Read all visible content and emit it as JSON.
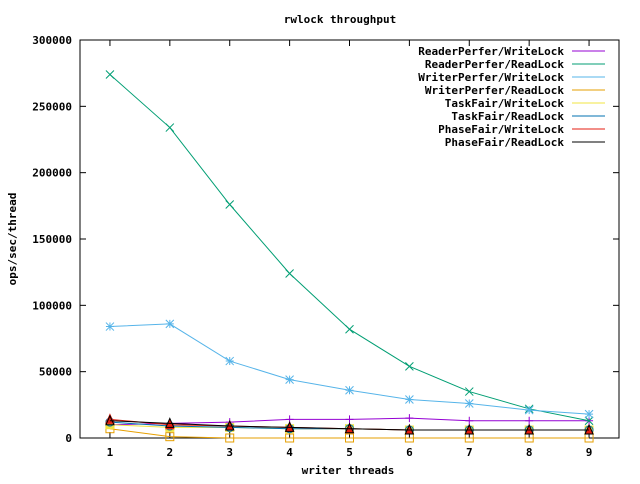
{
  "chart_data": {
    "type": "line",
    "title": "rwlock throughput",
    "xlabel": "writer threads",
    "ylabel": "ops/sec/thread",
    "xlim": [
      0.5,
      9.5
    ],
    "ylim": [
      0,
      300000
    ],
    "xticks": [
      1,
      2,
      3,
      4,
      5,
      6,
      7,
      8,
      9
    ],
    "yticks": [
      0,
      50000,
      100000,
      150000,
      200000,
      250000,
      300000
    ],
    "grid": false,
    "legend_position": "top-right",
    "x": [
      1,
      2,
      3,
      4,
      5,
      6,
      7,
      8,
      9
    ],
    "series": [
      {
        "name": "ReaderPerfer/WriteLock",
        "color": "#9400d3",
        "marker": "plus",
        "values": [
          10000,
          11000,
          12000,
          14000,
          14000,
          15000,
          13000,
          13000,
          13000
        ]
      },
      {
        "name": "ReaderPerfer/ReadLock",
        "color": "#009e73",
        "marker": "cross",
        "values": [
          274000,
          234000,
          176000,
          124000,
          82000,
          54000,
          35000,
          22000,
          13000
        ]
      },
      {
        "name": "WriterPerfer/WriteLock",
        "color": "#56b4e9",
        "marker": "star",
        "values": [
          84000,
          86000,
          58000,
          44000,
          36000,
          29000,
          26000,
          21000,
          18000
        ]
      },
      {
        "name": "WriterPerfer/ReadLock",
        "color": "#e69f00",
        "marker": "square",
        "values": [
          7000,
          1000,
          0,
          0,
          0,
          0,
          0,
          0,
          0
        ]
      },
      {
        "name": "TaskFair/WriteLock",
        "color": "#f0e442",
        "marker": "filled-square",
        "values": [
          10000,
          8000,
          8000,
          7000,
          7000,
          6000,
          6000,
          6000,
          6000
        ]
      },
      {
        "name": "TaskFair/ReadLock",
        "color": "#0072b2",
        "marker": "circle",
        "values": [
          12000,
          9000,
          8000,
          7000,
          7000,
          6000,
          6000,
          6000,
          6000
        ]
      },
      {
        "name": "PhaseFair/WriteLock",
        "color": "#e51e10",
        "marker": "filled-triangle",
        "values": [
          14000,
          10000,
          9000,
          8000,
          7000,
          6000,
          6000,
          6000,
          6000
        ]
      },
      {
        "name": "PhaseFair/ReadLock",
        "color": "#000000",
        "marker": "triangle",
        "values": [
          13000,
          11000,
          9000,
          8000,
          7000,
          6000,
          6000,
          6000,
          6000
        ]
      }
    ]
  }
}
